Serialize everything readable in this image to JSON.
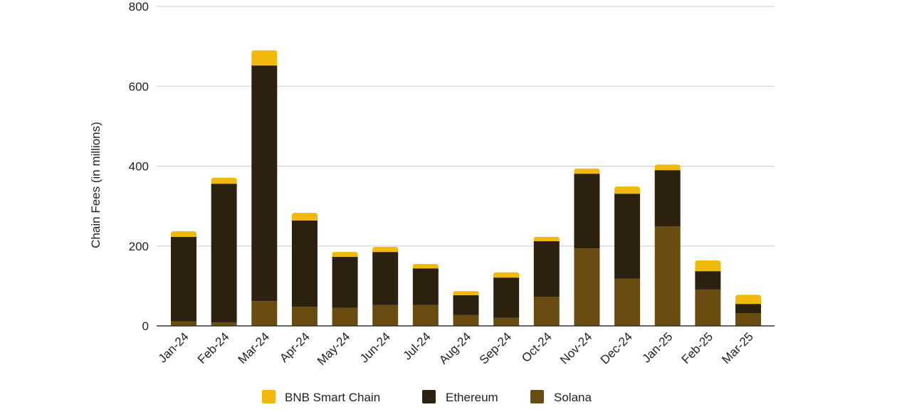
{
  "chart_data": {
    "type": "bar",
    "stacked": true,
    "title": "",
    "xlabel": "",
    "ylabel": "Chain Fees (in millions)",
    "ylim": [
      0,
      800
    ],
    "yticks": [
      "0",
      "200",
      "400",
      "600",
      "800"
    ],
    "grid": true,
    "legend_position": "bottom",
    "categories": [
      "Jan-24",
      "Feb-24",
      "Mar-24",
      "Apr-24",
      "May-24",
      "Jun-24",
      "Jul-24",
      "Aug-24",
      "Sep-24",
      "Oct-24",
      "Nov-24",
      "Dec-24",
      "Jan-25",
      "Feb-25",
      "Mar-25"
    ],
    "series": [
      {
        "name": "Solana",
        "color": "#6B4C10",
        "values": [
          11,
          9,
          62,
          48,
          45,
          52,
          52,
          27,
          20,
          73,
          194,
          118,
          249,
          91,
          32
        ]
      },
      {
        "name": "Ethereum",
        "color": "#2B210E",
        "values": [
          212,
          347,
          590,
          216,
          128,
          133,
          92,
          50,
          101,
          139,
          187,
          213,
          141,
          46,
          23
        ]
      },
      {
        "name": "BNB Smart Chain",
        "color": "#F0B90B",
        "values": [
          14,
          15,
          38,
          19,
          12,
          13,
          11,
          10,
          13,
          11,
          13,
          18,
          14,
          27,
          23
        ]
      }
    ],
    "legend_order": [
      "BNB Smart Chain",
      "Ethereum",
      "Solana"
    ]
  }
}
